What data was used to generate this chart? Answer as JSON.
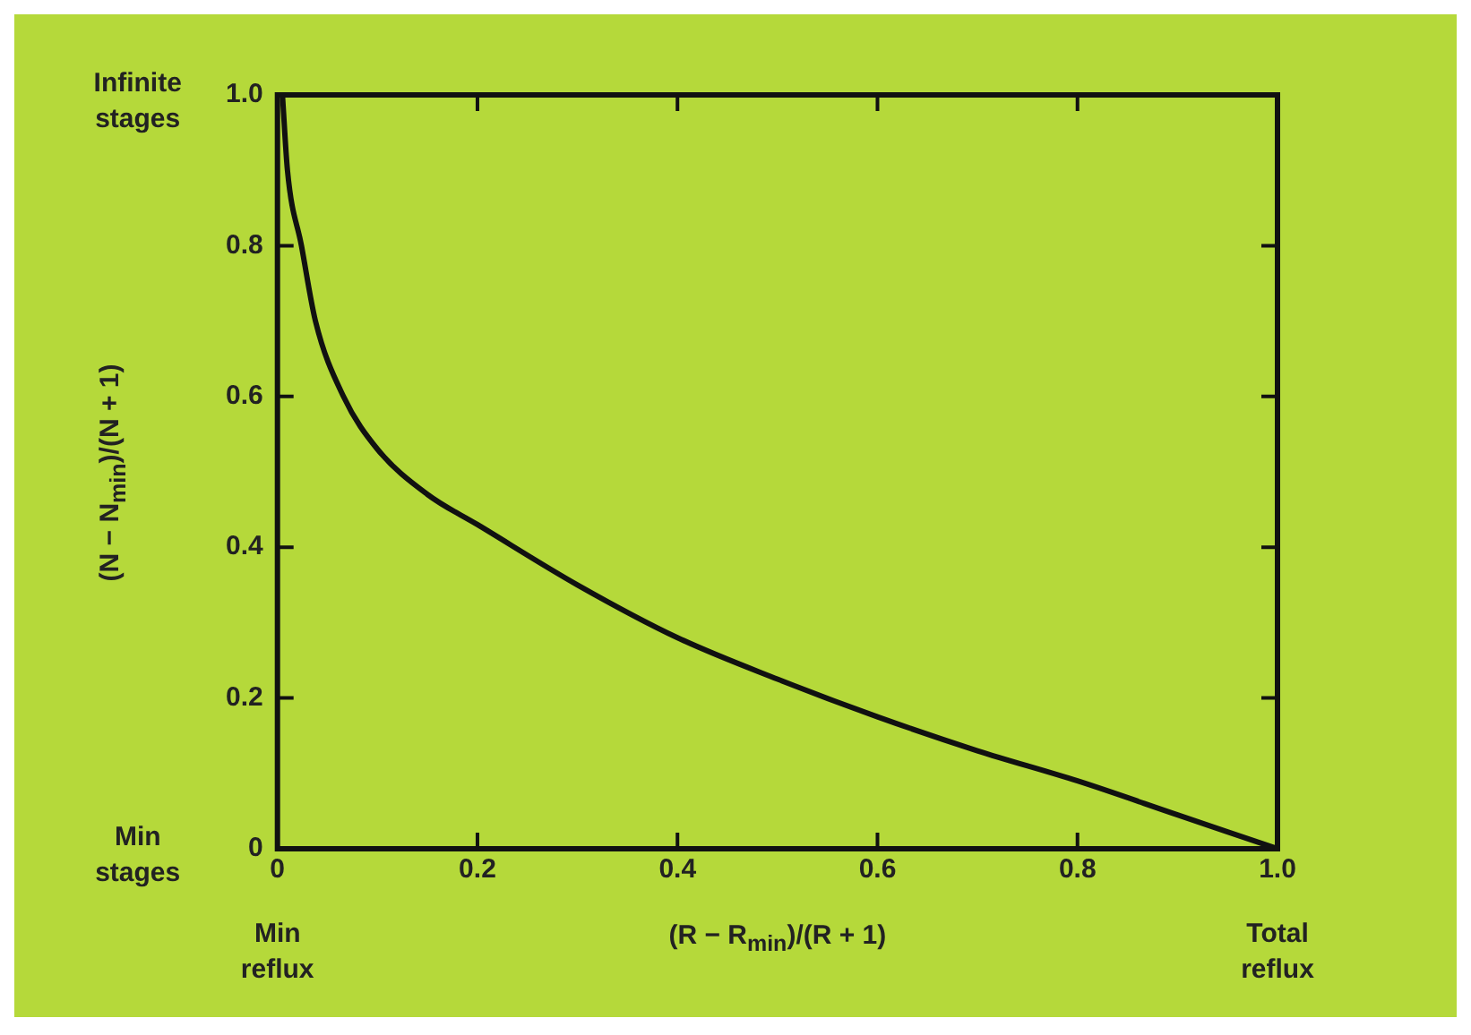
{
  "chart_data": {
    "type": "line",
    "xlabel": "(R − R$_{min}$)/(R + 1)",
    "ylabel": "(N − N$_{min}$)/(N + 1)",
    "x": [
      0.005,
      0.01,
      0.024,
      0.038,
      0.066,
      0.1,
      0.15,
      0.2,
      0.3,
      0.4,
      0.5,
      0.6,
      0.7,
      0.8,
      0.9,
      1.0
    ],
    "series": [
      {
        "color": "#111111",
        "values": [
          1.0,
          0.9,
          0.8,
          0.7,
          0.6,
          0.53,
          0.47,
          0.43,
          0.35,
          0.28,
          0.225,
          0.175,
          0.13,
          0.09,
          0.045,
          0
        ]
      }
    ],
    "xlim": [
      0,
      1
    ],
    "ylim": [
      0,
      1
    ],
    "xticks": [
      0,
      {
        "value": 0.2,
        "label": "0.2"
      },
      {
        "value": 0.4,
        "label": "0.4"
      },
      {
        "value": 0.6,
        "label": "0.6"
      },
      {
        "value": 0.8,
        "label": "0.8"
      },
      {
        "value": 1,
        "label": "1.0"
      }
    ],
    "yticks": [
      0,
      {
        "value": 0.2,
        "label": "0.2"
      },
      {
        "value": 0.4,
        "label": "0.4"
      },
      {
        "value": 0.6,
        "label": "0.6"
      },
      {
        "value": 0.8,
        "label": "0.8"
      },
      {
        "value": 1,
        "label": "1.0"
      }
    ],
    "annotations": [
      "Infinite stages",
      "Min stages",
      "Min reflux",
      "Total reflux"
    ],
    "grid": false,
    "legend": false,
    "marker": "none",
    "line_style": "solid"
  }
}
